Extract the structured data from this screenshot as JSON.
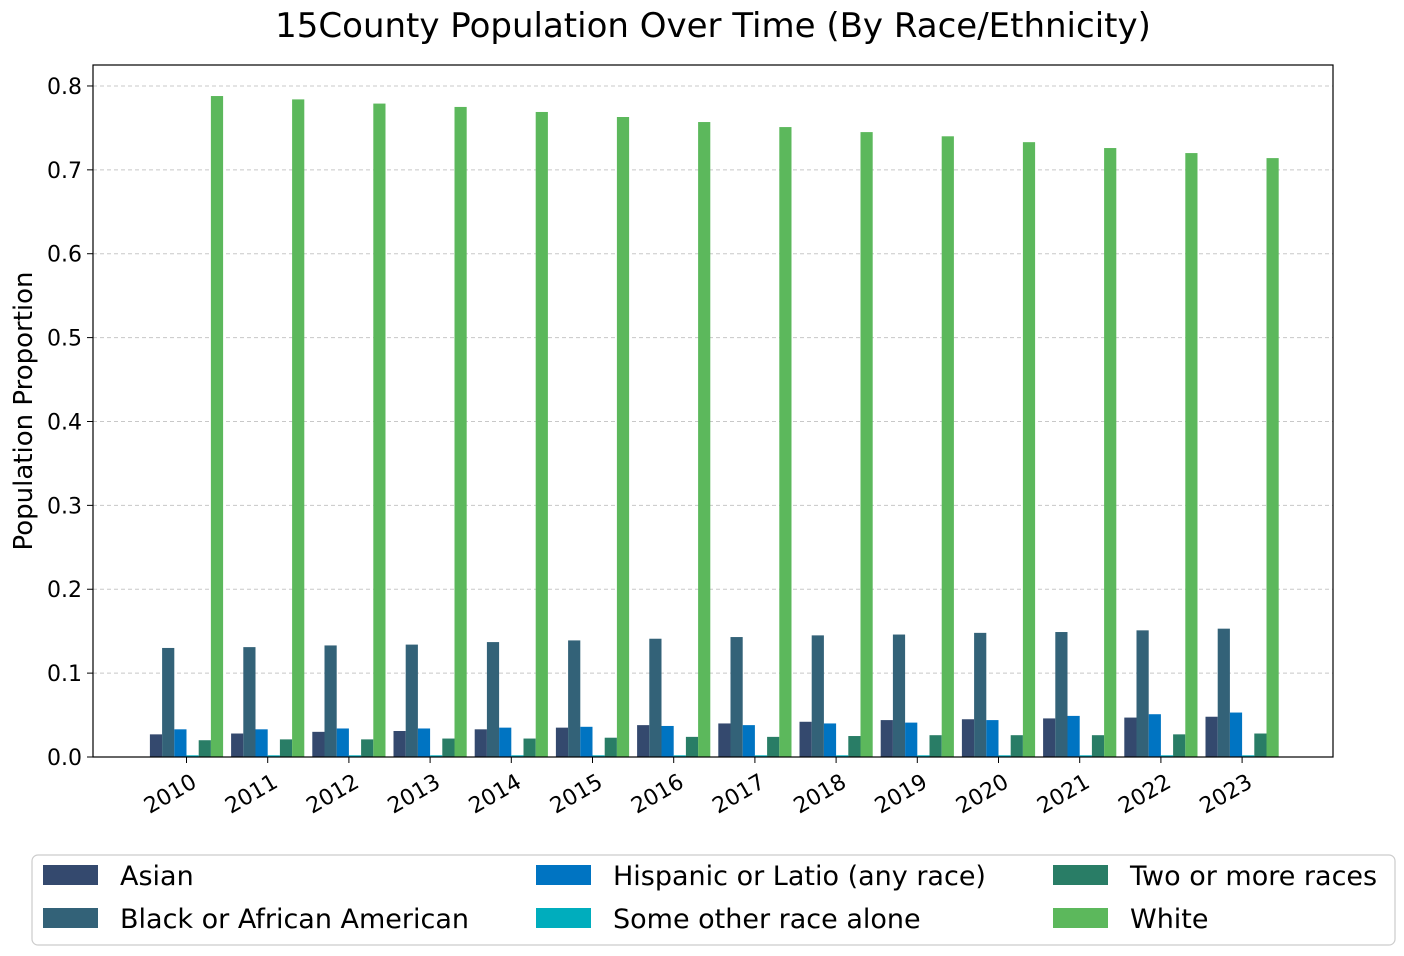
{
  "chart_data": {
    "type": "bar",
    "title": "15County Population Over Time (By Race/Ethnicity)",
    "xlabel": "",
    "ylabel": "Population Proportion",
    "ylim": [
      0,
      0.825
    ],
    "yticks": [
      "0.0",
      "0.1",
      "0.2",
      "0.3",
      "0.4",
      "0.5",
      "0.6",
      "0.7",
      "0.8"
    ],
    "grid": "horizontal dashed",
    "legend_placement": "bottom (below chart), 3 columns",
    "categories": [
      "2010",
      "2011",
      "2012",
      "2013",
      "2014",
      "2015",
      "2016",
      "2017",
      "2018",
      "2019",
      "2020",
      "2021",
      "2022",
      "2023"
    ],
    "series": [
      {
        "name": "Asian",
        "color": "#34496e",
        "values": [
          0.027,
          0.028,
          0.03,
          0.031,
          0.033,
          0.035,
          0.038,
          0.04,
          0.042,
          0.044,
          0.045,
          0.046,
          0.047,
          0.048
        ]
      },
      {
        "name": "Black or African American",
        "color": "#336278",
        "values": [
          0.13,
          0.131,
          0.133,
          0.134,
          0.137,
          0.139,
          0.141,
          0.143,
          0.145,
          0.146,
          0.148,
          0.149,
          0.151,
          0.153
        ]
      },
      {
        "name": "Hispanic or Latio (any race)",
        "color": "#0074c2",
        "values": [
          0.033,
          0.033,
          0.034,
          0.034,
          0.035,
          0.036,
          0.037,
          0.038,
          0.04,
          0.041,
          0.044,
          0.049,
          0.051,
          0.053
        ]
      },
      {
        "name": "Some other race alone",
        "color": "#00adbd",
        "values": [
          0.002,
          0.002,
          0.002,
          0.002,
          0.002,
          0.002,
          0.002,
          0.002,
          0.002,
          0.002,
          0.002,
          0.002,
          0.002,
          0.002
        ]
      },
      {
        "name": "Two or more races",
        "color": "#297d66",
        "values": [
          0.02,
          0.021,
          0.021,
          0.022,
          0.022,
          0.023,
          0.024,
          0.024,
          0.025,
          0.026,
          0.026,
          0.026,
          0.027,
          0.028
        ]
      },
      {
        "name": "White",
        "color": "#5cb85c",
        "values": [
          0.788,
          0.784,
          0.779,
          0.775,
          0.769,
          0.763,
          0.757,
          0.751,
          0.745,
          0.74,
          0.733,
          0.726,
          0.72,
          0.714
        ]
      }
    ]
  }
}
